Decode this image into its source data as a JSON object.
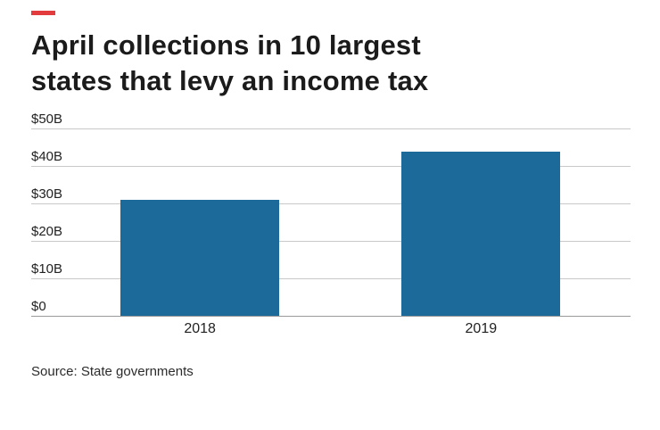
{
  "brand": {
    "dash_color": "#e23c3f"
  },
  "header": {
    "title_line1": "April collections in 10 largest",
    "title_line2": "states that levy an income tax"
  },
  "chart_data": {
    "type": "bar",
    "title": "April collections in 10 largest states that levy an income tax",
    "categories": [
      "2018",
      "2019"
    ],
    "values": [
      31,
      44
    ],
    "ylim": [
      0,
      50
    ],
    "ytick_interval": 10,
    "ytick_labels": [
      "$50B",
      "$40B",
      "$30B",
      "$20B",
      "$10B",
      "$0"
    ],
    "grid": true,
    "legend": false,
    "bar_color": "#1b6a99",
    "xlabel": "",
    "ylabel": ""
  },
  "footer": {
    "source": "Source: State governments"
  }
}
